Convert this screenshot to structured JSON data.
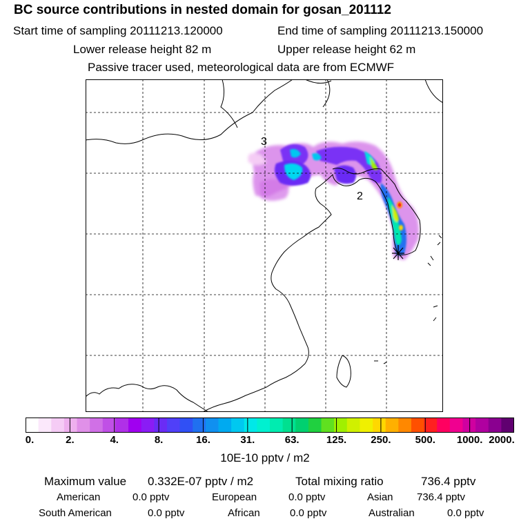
{
  "header": {
    "title": "BC  source contributions in nested domain for gosan_201112",
    "start_time": "Start time of sampling 20111213.120000",
    "end_time": "End time of sampling 20111213.150000",
    "lower_release": "Lower release height   82 m",
    "upper_release": "Upper release height   62 m",
    "tracer_note": "Passive tracer used, meteorological data are from ECMWF"
  },
  "map": {
    "labels": {
      "label_3": "3",
      "label_2": "2"
    },
    "receptor_icon": "asterisk-marker"
  },
  "colorbar": {
    "ticks": [
      "0.",
      "2.",
      "4.",
      "8.",
      "16.",
      "31.",
      "63.",
      "125.",
      "250.",
      "500.",
      "1000.",
      "2000."
    ],
    "colors": [
      "#ffffff",
      "#fbe8fb",
      "#f5ccf5",
      "#eeb0ee",
      "#e090e8",
      "#d070e6",
      "#c050e6",
      "#b030e8",
      "#a000f0",
      "#8a1cf5",
      "#6a2cf5",
      "#5040f8",
      "#3050f5",
      "#2070f0",
      "#1090f0",
      "#00aaf0",
      "#00c8f0",
      "#00e8e8",
      "#00f0d0",
      "#00ecb0",
      "#00e090",
      "#00d070",
      "#20d040",
      "#60e020",
      "#a0f000",
      "#d0f000",
      "#f0f000",
      "#ffd800",
      "#ffb000",
      "#ff8800",
      "#ff5000",
      "#ff2020",
      "#ff0060",
      "#f00090",
      "#d000a0",
      "#b000a0",
      "#8a0090",
      "#600070"
    ],
    "units": "10E-10 pptv / m2"
  },
  "summary": {
    "max_label": "Maximum value",
    "max_value": "0.332E-07 pptv / m2",
    "total_label": "Total mixing ratio",
    "total_value": "736.4 pptv",
    "rows": [
      {
        "name": "American",
        "value": "0.0 pptv"
      },
      {
        "name": "European",
        "value": "0.0 pptv"
      },
      {
        "name": "Asian",
        "value": "736.4 pptv"
      },
      {
        "name": "South American",
        "value": "0.0 pptv"
      },
      {
        "name": "African",
        "value": "0.0 pptv"
      },
      {
        "name": "Australian",
        "value": "0.0 pptv"
      }
    ]
  }
}
